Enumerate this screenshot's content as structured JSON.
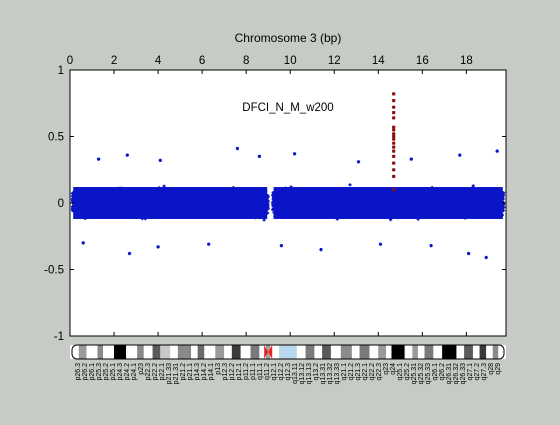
{
  "chart_data": {
    "type": "scatter",
    "title": "Chromosome 3 (bp)",
    "annotation": "DFCI_N_M_w200",
    "xlabel": "",
    "ylabel": "",
    "xlim": [
      0,
      19.8
    ],
    "ylim": [
      -1,
      1
    ],
    "x_ticks": [
      0,
      2,
      4,
      6,
      8,
      10,
      12,
      14,
      16,
      18
    ],
    "y_ticks": [
      1,
      0.5,
      0,
      -0.5,
      -1
    ],
    "y_tick_labels": [
      "1",
      "0.5",
      "0",
      "-0.5",
      "-1"
    ],
    "x_tick_position": "top",
    "grid": false,
    "reference_line": {
      "y": 0,
      "color": "#a0a0a0"
    },
    "colors": {
      "background": "#c7cbc5",
      "plot_bg": "#ffffff",
      "series": "#0a14c8",
      "highlight": "#8c1010"
    },
    "series": [
      {
        "role": "background",
        "segments": [
          [
            0.1,
            9.0
          ],
          [
            9.2,
            19.7
          ]
        ],
        "band": [
          -0.2,
          0.2
        ],
        "outliers": [
          [
            1.3,
            0.33
          ],
          [
            2.6,
            0.36
          ],
          [
            4.1,
            0.32
          ],
          [
            7.6,
            0.41
          ],
          [
            8.6,
            0.35
          ],
          [
            10.2,
            0.37
          ],
          [
            13.1,
            0.31
          ],
          [
            15.5,
            0.33
          ],
          [
            17.7,
            0.36
          ],
          [
            19.4,
            0.39
          ],
          [
            2.7,
            -0.38
          ],
          [
            4.0,
            -0.33
          ],
          [
            6.3,
            -0.31
          ],
          [
            9.6,
            -0.32
          ],
          [
            11.4,
            -0.35
          ],
          [
            14.1,
            -0.31
          ],
          [
            16.4,
            -0.32
          ],
          [
            18.1,
            -0.38
          ],
          [
            18.9,
            -0.41
          ],
          [
            0.6,
            -0.3
          ]
        ]
      },
      {
        "role": "highlight",
        "x": 14.7,
        "y": [
          0.82,
          0.77,
          0.72,
          0.68,
          0.64,
          0.57,
          0.55,
          0.52,
          0.5,
          0.48,
          0.45,
          0.42,
          0.39,
          0.35,
          0.3,
          0.25,
          0.2,
          0.1
        ]
      }
    ],
    "ideogram": {
      "bands": [
        {
          "s": 0.0,
          "e": 0.4,
          "c": "#ffffff"
        },
        {
          "s": 0.4,
          "e": 0.75,
          "c": "#9a9a9a"
        },
        {
          "s": 0.75,
          "e": 1.25,
          "c": "#ffffff"
        },
        {
          "s": 1.25,
          "e": 1.5,
          "c": "#8a8a8a"
        },
        {
          "s": 1.5,
          "e": 2.0,
          "c": "#ffffff"
        },
        {
          "s": 2.0,
          "e": 2.55,
          "c": "#000000"
        },
        {
          "s": 2.55,
          "e": 3.05,
          "c": "#ffffff"
        },
        {
          "s": 3.05,
          "e": 3.35,
          "c": "#8a8a8a"
        },
        {
          "s": 3.35,
          "e": 3.75,
          "c": "#ffffff"
        },
        {
          "s": 3.75,
          "e": 4.1,
          "c": "#5a5a5a"
        },
        {
          "s": 4.1,
          "e": 4.55,
          "c": "#c8c8c8"
        },
        {
          "s": 4.55,
          "e": 4.9,
          "c": "#ffffff"
        },
        {
          "s": 4.9,
          "e": 5.5,
          "c": "#8a8a8a"
        },
        {
          "s": 5.5,
          "e": 5.8,
          "c": "#ffffff"
        },
        {
          "s": 5.8,
          "e": 6.1,
          "c": "#6a6a6a"
        },
        {
          "s": 6.1,
          "e": 6.6,
          "c": "#ffffff"
        },
        {
          "s": 6.6,
          "e": 7.0,
          "c": "#9a9a9a"
        },
        {
          "s": 7.0,
          "e": 7.35,
          "c": "#ffffff"
        },
        {
          "s": 7.35,
          "e": 7.75,
          "c": "#3a3a3a"
        },
        {
          "s": 7.75,
          "e": 8.2,
          "c": "#ffffff"
        },
        {
          "s": 8.2,
          "e": 8.6,
          "c": "#7a7a7a"
        },
        {
          "s": 8.6,
          "e": 8.9,
          "c": "#ffffff"
        },
        {
          "s": 8.9,
          "e": 9.1,
          "c": "#a0a0a0"
        },
        {
          "s": 9.1,
          "e": 9.5,
          "c": "#ffffff"
        },
        {
          "s": 9.5,
          "e": 10.3,
          "c": "#b8d8f0"
        },
        {
          "s": 10.3,
          "e": 10.7,
          "c": "#ffffff"
        },
        {
          "s": 10.7,
          "e": 11.1,
          "c": "#7a7a7a"
        },
        {
          "s": 11.1,
          "e": 11.45,
          "c": "#ffffff"
        },
        {
          "s": 11.45,
          "e": 11.85,
          "c": "#5a5a5a"
        },
        {
          "s": 11.85,
          "e": 12.3,
          "c": "#ffffff"
        },
        {
          "s": 12.3,
          "e": 12.8,
          "c": "#8a8a8a"
        },
        {
          "s": 12.8,
          "e": 13.15,
          "c": "#ffffff"
        },
        {
          "s": 13.15,
          "e": 13.6,
          "c": "#7a7a7a"
        },
        {
          "s": 13.6,
          "e": 14.0,
          "c": "#ffffff"
        },
        {
          "s": 14.0,
          "e": 14.35,
          "c": "#9a9a9a"
        },
        {
          "s": 14.35,
          "e": 14.6,
          "c": "#ffffff"
        },
        {
          "s": 14.6,
          "e": 15.2,
          "c": "#000000"
        },
        {
          "s": 15.2,
          "e": 15.55,
          "c": "#ffffff"
        },
        {
          "s": 15.55,
          "e": 15.8,
          "c": "#9a9a9a"
        },
        {
          "s": 15.8,
          "e": 16.1,
          "c": "#ffffff"
        },
        {
          "s": 16.1,
          "e": 16.5,
          "c": "#7a7a7a"
        },
        {
          "s": 16.5,
          "e": 16.9,
          "c": "#ffffff"
        },
        {
          "s": 16.9,
          "e": 17.55,
          "c": "#000000"
        },
        {
          "s": 17.55,
          "e": 17.9,
          "c": "#ffffff"
        },
        {
          "s": 17.9,
          "e": 18.3,
          "c": "#5a5a5a"
        },
        {
          "s": 18.3,
          "e": 18.6,
          "c": "#ffffff"
        },
        {
          "s": 18.6,
          "e": 18.9,
          "c": "#3a3a3a"
        },
        {
          "s": 18.9,
          "e": 19.2,
          "c": "#ffffff"
        },
        {
          "s": 19.2,
          "e": 19.45,
          "c": "#8a8a8a"
        },
        {
          "s": 19.45,
          "e": 19.8,
          "c": "#ffffff"
        }
      ],
      "centromere": 9.0,
      "centromere_color": "#ee2222",
      "labels": [
        "p26.3",
        "p26.2",
        "p26.1",
        "p25.3",
        "p25.2",
        "p25.1",
        "p24.3",
        "p24.2",
        "p24.1",
        "p23",
        "p22.3",
        "p22.2",
        "p22.1",
        "p21.33",
        "p21.31",
        "p21.2",
        "p21.1",
        "p14.3",
        "p14.2",
        "p14.1",
        "p13",
        "p12.3",
        "p12.2",
        "p12.1",
        "p11.2",
        "p11.1",
        "q11.1",
        "q11.2",
        "q12.1",
        "q12.2",
        "q12.3",
        "q13.11",
        "q13.12",
        "q13.13",
        "q13.2",
        "q13.31",
        "q13.32",
        "q13.33",
        "q21.1",
        "q21.2",
        "q21.3",
        "q22.1",
        "q22.2",
        "q22.3",
        "q23",
        "q24",
        "q25.1",
        "q25.2",
        "q25.31",
        "q25.32",
        "q25.33",
        "q26.1",
        "q26.2",
        "q26.31",
        "q26.32",
        "q26.33",
        "q27.1",
        "q27.2",
        "q27.3",
        "q28",
        "q29"
      ]
    }
  }
}
